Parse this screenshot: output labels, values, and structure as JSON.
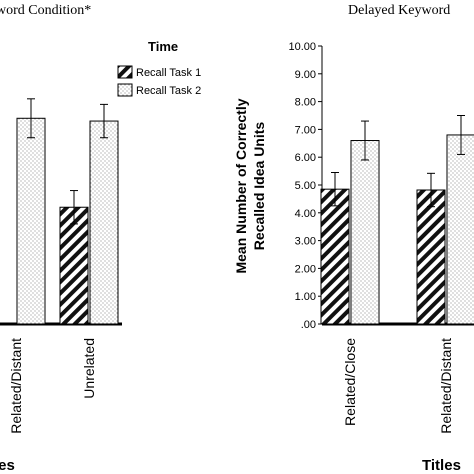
{
  "chart_data": [
    {
      "type": "bar",
      "title": "Immediate Keyword Condition*",
      "title_visible": "word Condition*",
      "xlabel": "Titles",
      "xlabel_visible": "les",
      "ylabel": "",
      "legend": {
        "title": "Time",
        "placement": "top-right",
        "entries": [
          "Recall Task 1",
          "Recall Task 2"
        ]
      },
      "categories": [
        "Related/Distant",
        "Unrelated"
      ],
      "series": [
        {
          "name": "Recall Task 1",
          "values": [
            null,
            4.2
          ],
          "errors": [
            null,
            0.6
          ],
          "pattern": "diagonal-hatch"
        },
        {
          "name": "Recall Task 2",
          "values": [
            7.4,
            7.3
          ],
          "errors": [
            0.7,
            0.6
          ],
          "pattern": "dots"
        }
      ],
      "ylim": [
        0,
        10
      ],
      "grid": false
    },
    {
      "type": "bar",
      "title": "Delayed Keyword Condition",
      "title_visible": "Delayed Keyword",
      "xlabel": "Titles",
      "ylabel": "Mean Number of Correctly Recalled Idea Units",
      "yticks": [
        ".00",
        "1.00",
        "2.00",
        "3.00",
        "4.00",
        "5.00",
        "6.00",
        "7.00",
        "8.00",
        "9.00",
        "10.00"
      ],
      "categories": [
        "Related/Close",
        "Related/Distant"
      ],
      "series": [
        {
          "name": "Recall Task 1",
          "values": [
            4.85,
            4.82
          ],
          "errors": [
            0.6,
            0.6
          ],
          "pattern": "diagonal-hatch"
        },
        {
          "name": "Recall Task 2",
          "values": [
            6.6,
            6.8
          ],
          "errors": [
            0.7,
            0.7
          ],
          "pattern": "dots"
        }
      ],
      "ylim": [
        0,
        10
      ],
      "grid": false
    }
  ]
}
